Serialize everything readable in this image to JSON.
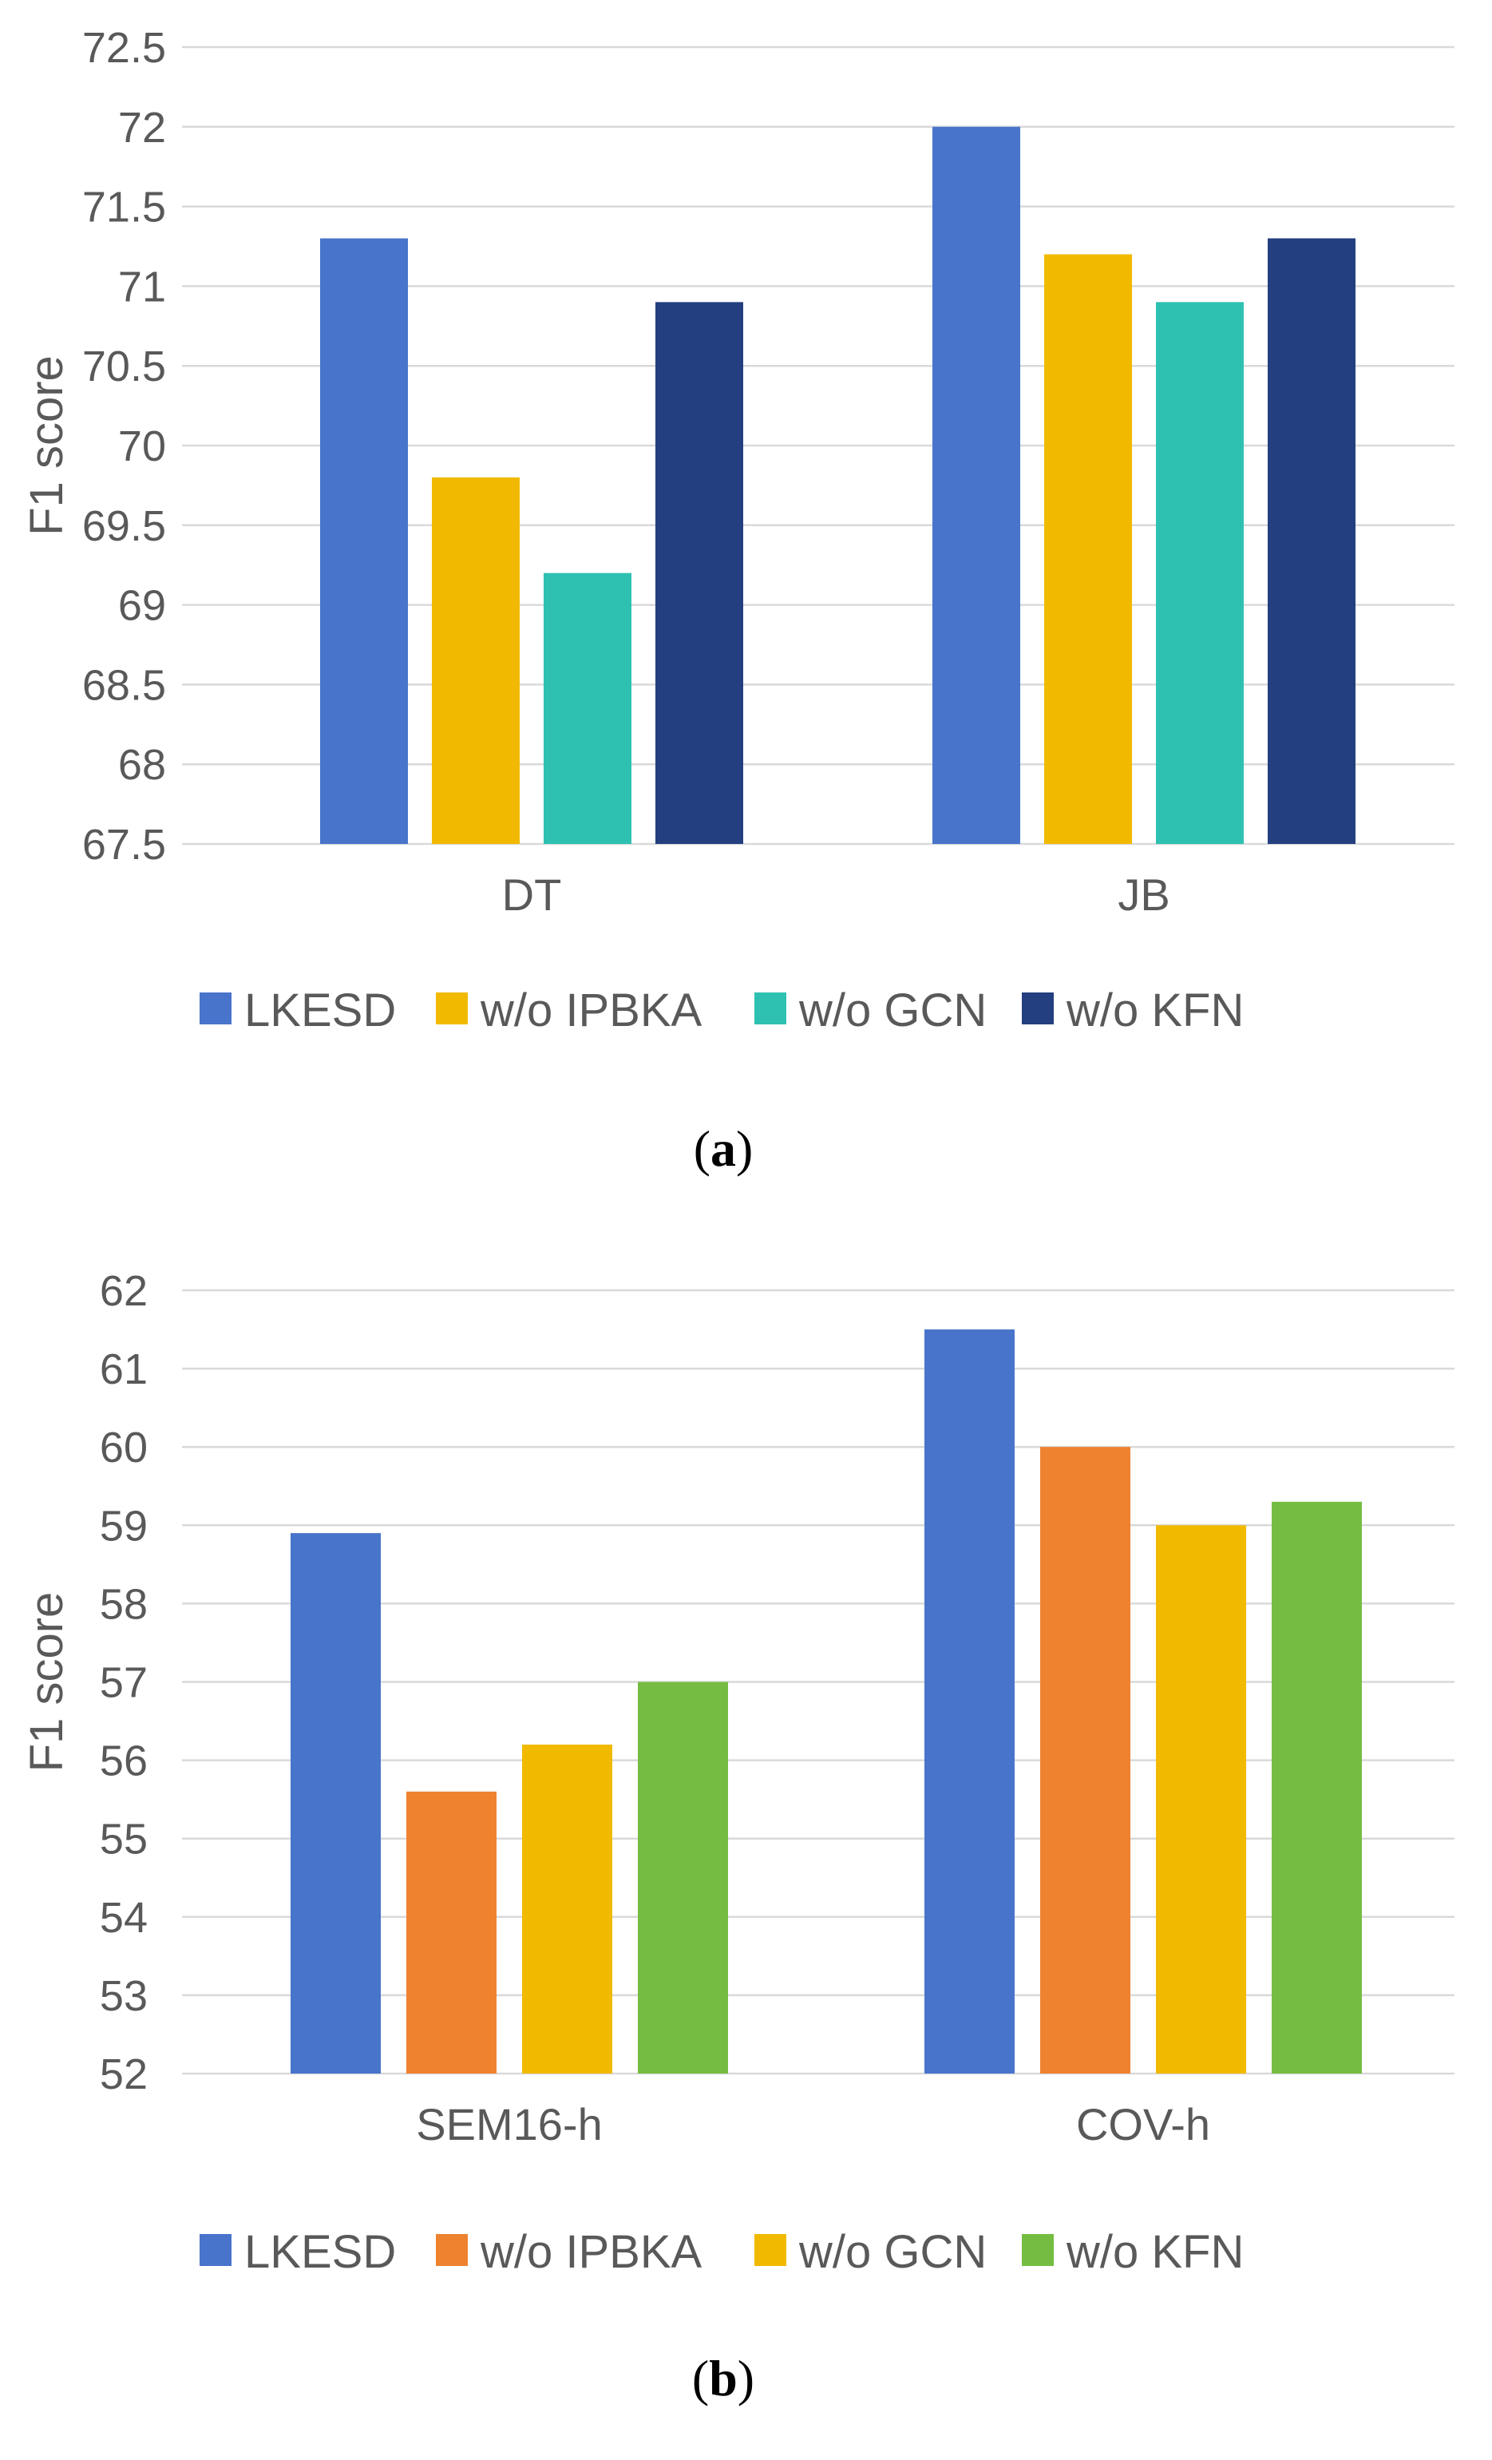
{
  "chart_data": [
    {
      "type": "bar",
      "panel_label": "a",
      "title": "",
      "xlabel": "",
      "ylabel": "F1 score",
      "ylim": [
        67.5,
        72.5
      ],
      "ytick_step": 0.5,
      "yticks": [
        "67.5",
        "68",
        "68.5",
        "69",
        "69.5",
        "70",
        "70.5",
        "71",
        "71.5",
        "72",
        "72.5"
      ],
      "grid": true,
      "legend_position": "bottom",
      "categories": [
        "DT",
        "JB"
      ],
      "series": [
        {
          "name": "LKESD",
          "color": "#4874CB",
          "values": [
            71.3,
            72.0
          ]
        },
        {
          "name": "w/o IPBKA",
          "color": "#F1BA00",
          "values": [
            69.8,
            71.2
          ]
        },
        {
          "name": "w/o GCN",
          "color": "#2EC1B2",
          "values": [
            69.2,
            70.9
          ]
        },
        {
          "name": "w/o KFN",
          "color": "#233F7F",
          "values": [
            70.9,
            71.3
          ]
        }
      ]
    },
    {
      "type": "bar",
      "panel_label": "b",
      "title": "",
      "xlabel": "",
      "ylabel": "F1 score",
      "ylim": [
        52,
        62
      ],
      "ytick_step": 1,
      "yticks": [
        "52",
        "53",
        "54",
        "55",
        "56",
        "57",
        "58",
        "59",
        "60",
        "61",
        "62"
      ],
      "grid": true,
      "legend_position": "bottom",
      "categories": [
        "SEM16-h",
        "COV-h"
      ],
      "series": [
        {
          "name": "LKESD",
          "color": "#4874CB",
          "values": [
            58.9,
            61.5
          ]
        },
        {
          "name": "w/o IPBKA",
          "color": "#EE822F",
          "values": [
            55.6,
            60.0
          ]
        },
        {
          "name": "w/o GCN",
          "color": "#F1BA00",
          "values": [
            56.2,
            59.0
          ]
        },
        {
          "name": "w/o KFN",
          "color": "#75BD42",
          "values": [
            57.0,
            59.3
          ]
        }
      ]
    }
  ]
}
